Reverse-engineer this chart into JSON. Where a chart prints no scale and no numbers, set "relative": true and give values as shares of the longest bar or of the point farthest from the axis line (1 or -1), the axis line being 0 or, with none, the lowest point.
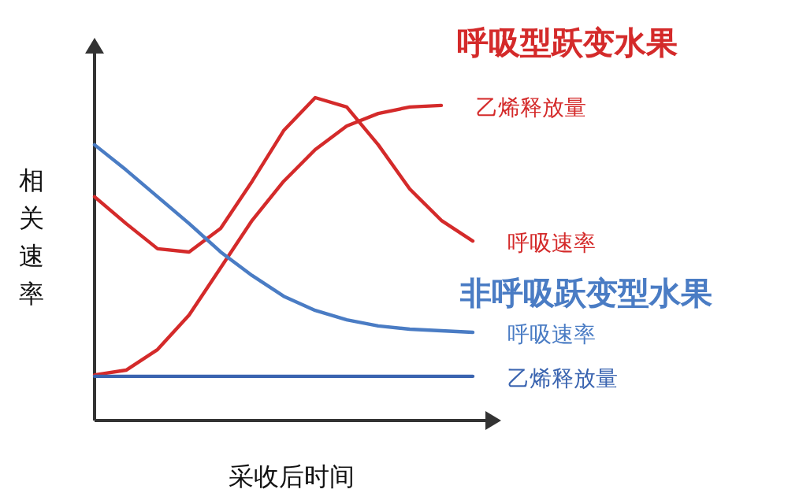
{
  "chart_data": {
    "type": "line",
    "relative": true,
    "xlabel": "采收后时间",
    "ylabel": "相关速率",
    "categories": [
      null,
      null,
      null,
      null,
      null,
      null,
      null,
      null,
      null,
      null,
      null,
      null,
      null
    ],
    "annotations": [
      "呼吸型跃变水果",
      "非呼吸跃变型水果"
    ],
    "series": [
      {
        "name": "呼吸速率",
        "color": "#d42a2a",
        "values": [
          0.693,
          0.61,
          0.532,
          0.522,
          0.595,
          0.741,
          0.898,
          1.0,
          0.971,
          0.854,
          0.717,
          0.62,
          0.556
        ]
      },
      {
        "name": "乙烯释放量",
        "color": "#d42a2a",
        "values": [
          0.141,
          0.156,
          0.22,
          0.327,
          0.473,
          0.62,
          0.741,
          0.839,
          0.912,
          0.951,
          0.971,
          0.976,
          null
        ]
      },
      {
        "name": "呼吸速率",
        "color": "#4a7cc4",
        "values": [
          0.854,
          0.776,
          0.693,
          0.61,
          0.522,
          0.449,
          0.385,
          0.341,
          0.312,
          0.293,
          0.283,
          0.278,
          0.273
        ]
      },
      {
        "name": "乙烯释放量",
        "color": "#3a64b0",
        "values": [
          0.137,
          0.137,
          0.137,
          0.137,
          0.137,
          0.137,
          0.137,
          0.137,
          0.137,
          0.137,
          0.137,
          0.137,
          0.137
        ]
      }
    ]
  }
}
